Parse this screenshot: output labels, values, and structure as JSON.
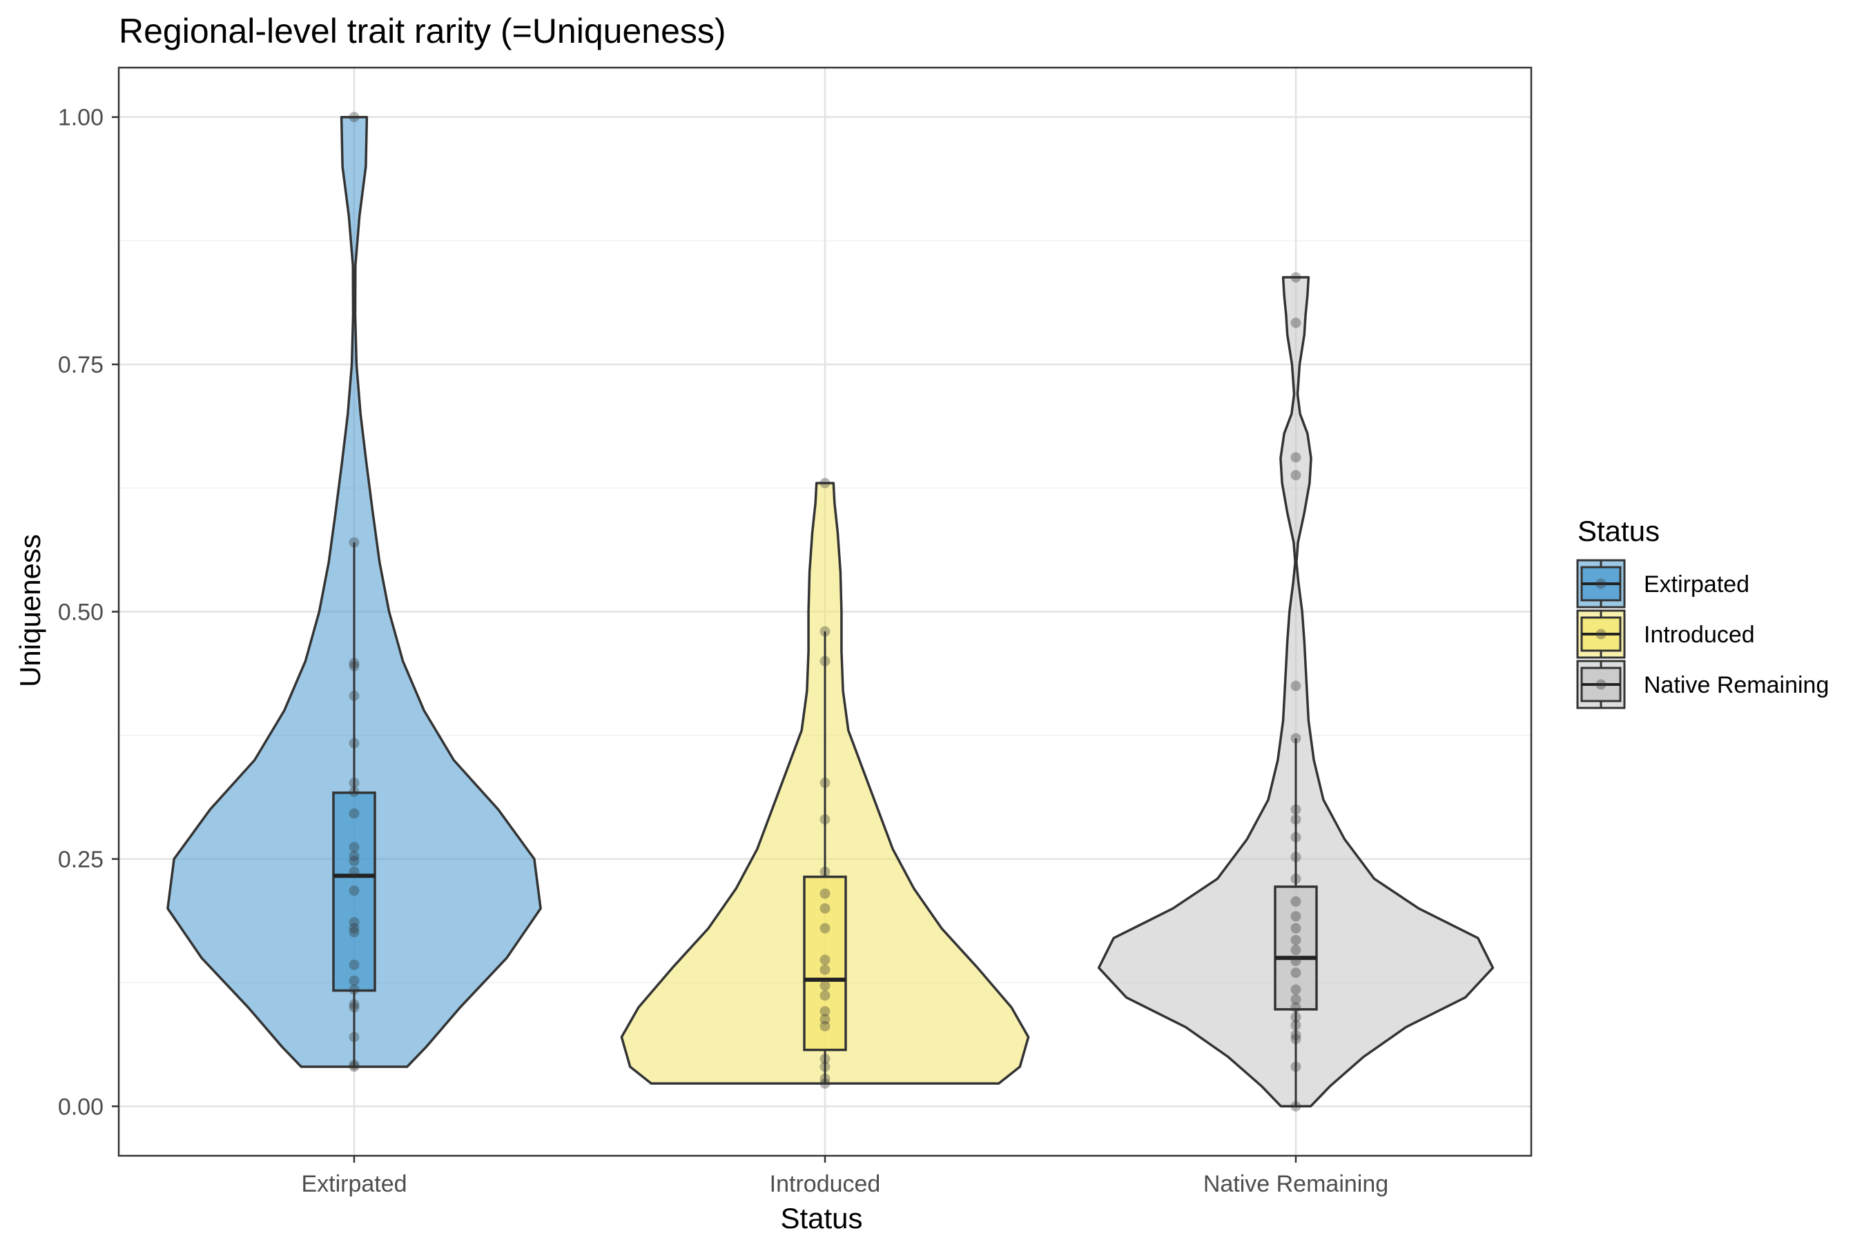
{
  "chart_data": {
    "type": "violin",
    "title": "Regional-level trait rarity (=Uniqueness)",
    "xlabel": "Status",
    "ylabel": "Uniqueness",
    "categories": [
      "Extirpated",
      "Introduced",
      "Native Remaining"
    ],
    "ylim": [
      -0.05,
      1.05
    ],
    "yticks": [
      "0.00",
      "0.25",
      "0.50",
      "0.75",
      "1.00"
    ],
    "grid": true,
    "legend": {
      "title": "Status",
      "position": "right",
      "entries": [
        "Extirpated",
        "Introduced",
        "Native Remaining"
      ]
    },
    "colors": {
      "Extirpated": "#4a9bcf",
      "Introduced": "#f3e66b",
      "Native Remaining": "#c4c4c4"
    },
    "series": [
      {
        "name": "Extirpated",
        "box": {
          "q1": 0.117,
          "median": 0.233,
          "q3": 0.317,
          "whisker_low": 0.04,
          "whisker_high": 0.57
        },
        "points": [
          1.0,
          0.57,
          0.448,
          0.445,
          0.415,
          0.367,
          0.327,
          0.318,
          0.296,
          0.262,
          0.253,
          0.248,
          0.237,
          0.218,
          0.186,
          0.18,
          0.176,
          0.143,
          0.127,
          0.118,
          0.103,
          0.1,
          0.07,
          0.042,
          0.04
        ],
        "violin": [
          [
            0.04,
            0.25
          ],
          [
            0.06,
            0.34
          ],
          [
            0.1,
            0.5
          ],
          [
            0.15,
            0.72
          ],
          [
            0.2,
            0.88
          ],
          [
            0.25,
            0.85
          ],
          [
            0.3,
            0.68
          ],
          [
            0.35,
            0.47
          ],
          [
            0.4,
            0.33
          ],
          [
            0.45,
            0.23
          ],
          [
            0.5,
            0.165
          ],
          [
            0.55,
            0.12
          ],
          [
            0.6,
            0.088
          ],
          [
            0.65,
            0.058
          ],
          [
            0.7,
            0.03
          ],
          [
            0.75,
            0.011
          ],
          [
            0.8,
            0.005
          ],
          [
            0.85,
            0.006
          ],
          [
            0.9,
            0.025
          ],
          [
            0.95,
            0.055
          ],
          [
            1.0,
            0.06
          ]
        ]
      },
      {
        "name": "Introduced",
        "box": {
          "q1": 0.057,
          "median": 0.128,
          "q3": 0.232,
          "whisker_low": 0.023,
          "whisker_high": 0.48
        },
        "points": [
          0.63,
          0.48,
          0.45,
          0.327,
          0.29,
          0.237,
          0.215,
          0.2,
          0.18,
          0.148,
          0.138,
          0.122,
          0.112,
          0.096,
          0.088,
          0.081,
          0.048,
          0.04,
          0.028,
          0.023
        ],
        "violin": [
          [
            0.023,
            0.82
          ],
          [
            0.04,
            0.92
          ],
          [
            0.07,
            0.96
          ],
          [
            0.1,
            0.88
          ],
          [
            0.14,
            0.72
          ],
          [
            0.18,
            0.55
          ],
          [
            0.22,
            0.42
          ],
          [
            0.26,
            0.32
          ],
          [
            0.3,
            0.25
          ],
          [
            0.34,
            0.18
          ],
          [
            0.38,
            0.11
          ],
          [
            0.42,
            0.085
          ],
          [
            0.46,
            0.078
          ],
          [
            0.5,
            0.078
          ],
          [
            0.54,
            0.073
          ],
          [
            0.58,
            0.06
          ],
          [
            0.61,
            0.045
          ],
          [
            0.63,
            0.04
          ]
        ]
      },
      {
        "name": "Native Remaining",
        "box": {
          "q1": 0.098,
          "median": 0.15,
          "q3": 0.222,
          "whisker_low": 0.0,
          "whisker_high": 0.372
        },
        "points": [
          0.838,
          0.792,
          0.656,
          0.638,
          0.425,
          0.372,
          0.3,
          0.29,
          0.272,
          0.252,
          0.23,
          0.207,
          0.192,
          0.18,
          0.168,
          0.158,
          0.147,
          0.135,
          0.118,
          0.108,
          0.1,
          0.09,
          0.082,
          0.072,
          0.068,
          0.04,
          0.0
        ],
        "violin": [
          [
            0.0,
            0.07
          ],
          [
            0.02,
            0.16
          ],
          [
            0.05,
            0.32
          ],
          [
            0.08,
            0.52
          ],
          [
            0.11,
            0.8
          ],
          [
            0.14,
            0.93
          ],
          [
            0.17,
            0.86
          ],
          [
            0.2,
            0.58
          ],
          [
            0.23,
            0.37
          ],
          [
            0.27,
            0.23
          ],
          [
            0.31,
            0.13
          ],
          [
            0.35,
            0.085
          ],
          [
            0.39,
            0.06
          ],
          [
            0.43,
            0.05
          ],
          [
            0.47,
            0.04
          ],
          [
            0.5,
            0.03
          ],
          [
            0.53,
            0.012
          ],
          [
            0.55,
            0.003
          ],
          [
            0.57,
            0.01
          ],
          [
            0.6,
            0.04
          ],
          [
            0.63,
            0.065
          ],
          [
            0.655,
            0.072
          ],
          [
            0.68,
            0.055
          ],
          [
            0.7,
            0.02
          ],
          [
            0.72,
            0.008
          ],
          [
            0.75,
            0.018
          ],
          [
            0.78,
            0.04
          ],
          [
            0.8,
            0.046
          ],
          [
            0.82,
            0.055
          ],
          [
            0.838,
            0.06
          ]
        ]
      }
    ]
  }
}
